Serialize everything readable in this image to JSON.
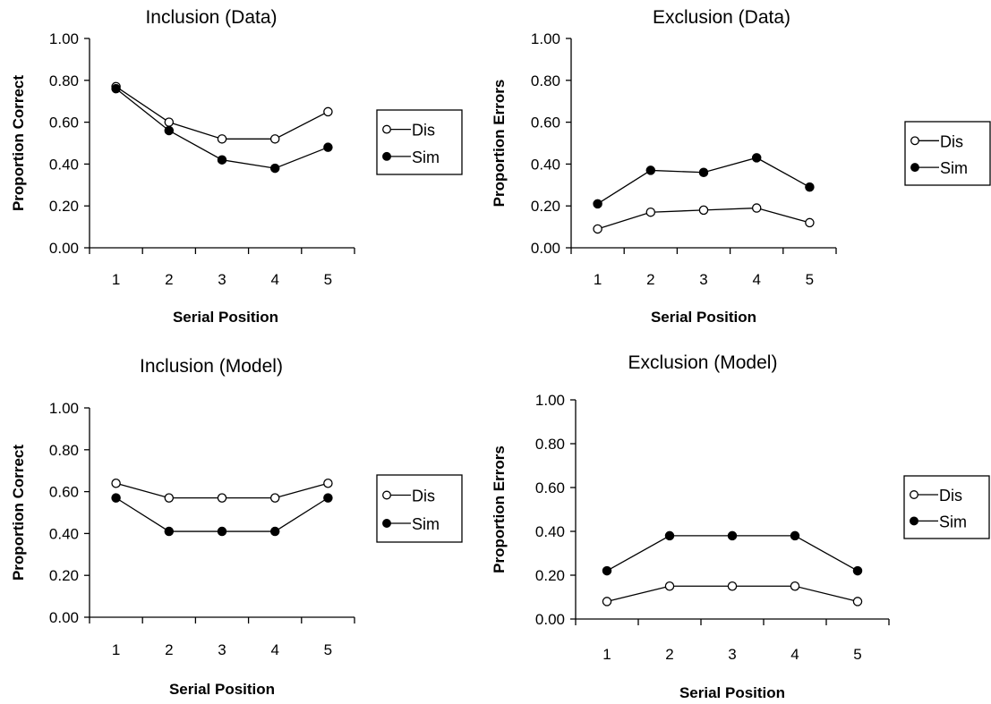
{
  "chart_data": [
    {
      "type": "line",
      "title": "Inclusion (Data)",
      "xlabel": "Serial Position",
      "ylabel": "Proportion Correct",
      "categories": [
        "1",
        "2",
        "3",
        "4",
        "5"
      ],
      "ylim": [
        0,
        1
      ],
      "yticks": [
        "0.00",
        "0.20",
        "0.40",
        "0.60",
        "0.80",
        "1.00"
      ],
      "legend_position": "right",
      "series": [
        {
          "name": "Dis",
          "marker": "open-circle",
          "values": [
            0.77,
            0.6,
            0.52,
            0.52,
            0.65
          ]
        },
        {
          "name": "Sim",
          "marker": "filled-circle",
          "values": [
            0.76,
            0.56,
            0.42,
            0.38,
            0.48
          ]
        }
      ]
    },
    {
      "type": "line",
      "title": "Exclusion (Data)",
      "xlabel": "Serial Position",
      "ylabel": "Proportion Errors",
      "categories": [
        "1",
        "2",
        "3",
        "4",
        "5"
      ],
      "ylim": [
        0,
        1
      ],
      "yticks": [
        "0.00",
        "0.20",
        "0.40",
        "0.60",
        "0.80",
        "1.00"
      ],
      "legend_position": "right",
      "series": [
        {
          "name": "Dis",
          "marker": "open-circle",
          "values": [
            0.09,
            0.17,
            0.18,
            0.19,
            0.12
          ]
        },
        {
          "name": "Sim",
          "marker": "filled-circle",
          "values": [
            0.21,
            0.37,
            0.36,
            0.43,
            0.29
          ]
        }
      ]
    },
    {
      "type": "line",
      "title": "Inclusion (Model)",
      "xlabel": "Serial Position",
      "ylabel": "Proportion Correct",
      "categories": [
        "1",
        "2",
        "3",
        "4",
        "5"
      ],
      "ylim": [
        0,
        1
      ],
      "yticks": [
        "0.00",
        "0.20",
        "0.40",
        "0.60",
        "0.80",
        "1.00"
      ],
      "legend_position": "right",
      "series": [
        {
          "name": "Dis",
          "marker": "open-circle",
          "values": [
            0.64,
            0.57,
            0.57,
            0.57,
            0.64
          ]
        },
        {
          "name": "Sim",
          "marker": "filled-circle",
          "values": [
            0.57,
            0.41,
            0.41,
            0.41,
            0.57
          ]
        }
      ]
    },
    {
      "type": "line",
      "title": "Exclusion (Model)",
      "xlabel": "Serial Position",
      "ylabel": "Proportion Errors",
      "categories": [
        "1",
        "2",
        "3",
        "4",
        "5"
      ],
      "ylim": [
        0,
        1
      ],
      "yticks": [
        "0.00",
        "0.20",
        "0.40",
        "0.60",
        "0.80",
        "1.00"
      ],
      "legend_position": "right",
      "series": [
        {
          "name": "Dis",
          "marker": "open-circle",
          "values": [
            0.08,
            0.15,
            0.15,
            0.15,
            0.08
          ]
        },
        {
          "name": "Sim",
          "marker": "filled-circle",
          "values": [
            0.22,
            0.38,
            0.38,
            0.38,
            0.22
          ]
        }
      ]
    }
  ]
}
